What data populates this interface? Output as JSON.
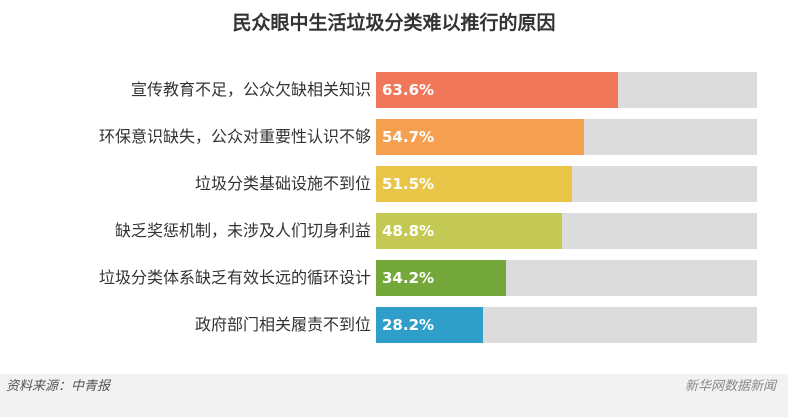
{
  "chart_data": {
    "type": "bar",
    "orientation": "horizontal",
    "title": "民众眼中生活垃圾分类难以推行的原因",
    "categories": [
      "宣传教育不足，公众欠缺相关知识",
      "环保意识缺失，公众对重要性认识不够",
      "垃圾分类基础设施不到位",
      "缺乏奖惩机制，未涉及人们切身利益",
      "垃圾分类体系缺乏有效长远的循环设计",
      "政府部门相关履责不到位"
    ],
    "values": [
      63.6,
      54.7,
      51.5,
      48.8,
      34.2,
      28.2
    ],
    "value_labels": [
      "63.6%",
      "54.7%",
      "51.5%",
      "48.8%",
      "34.2%",
      "28.2%"
    ],
    "unit": "%",
    "xlim": [
      0,
      100
    ],
    "bar_colors": [
      "#f0775a",
      "#f5a050",
      "#e8c547",
      "#c3c952",
      "#74a83b",
      "#2f9ec8"
    ],
    "track_color": "#dcdcdc",
    "grid": false
  },
  "footer": {
    "source": "资料来源：中青报",
    "brand": "新华网数据新闻"
  }
}
